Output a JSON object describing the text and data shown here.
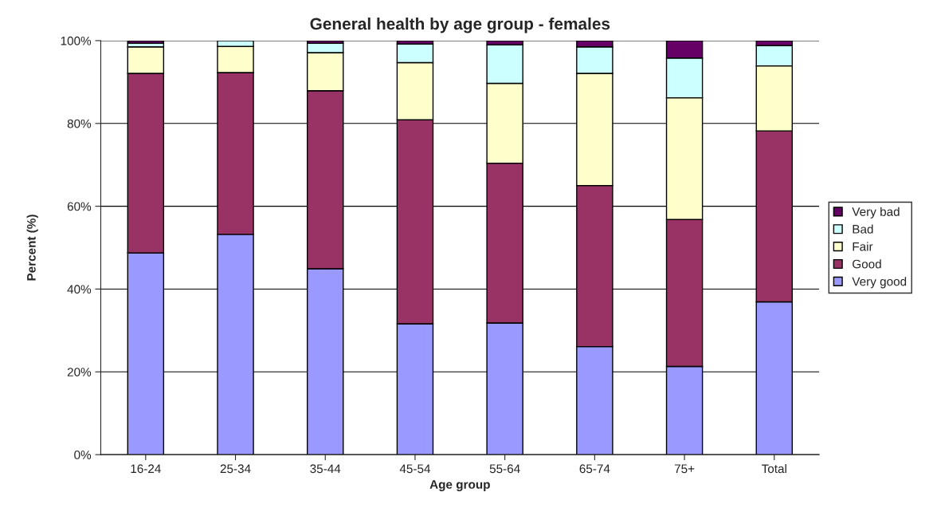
{
  "chart_data": {
    "type": "bar",
    "title": "General health by age group - females",
    "xlabel": "Age group",
    "ylabel": "Percent (%)",
    "categories": [
      "16-24",
      "25-34",
      "35-44",
      "45-54",
      "55-64",
      "65-74",
      "75+",
      "Total"
    ],
    "stacked": true,
    "grid": "y",
    "legend": "right",
    "ylim": [
      0,
      100
    ],
    "yticks": [
      {
        "value": 0,
        "label": "0%"
      },
      {
        "value": 20,
        "label": "20%"
      },
      {
        "value": 40,
        "label": "40%"
      },
      {
        "value": 60,
        "label": "60%"
      },
      {
        "value": 80,
        "label": "80%"
      },
      {
        "value": 100,
        "label": "100%"
      }
    ],
    "series": [
      {
        "name": "Very good",
        "color": "#9999ff",
        "values": [
          48.7,
          53.2,
          44.9,
          31.6,
          31.8,
          26.1,
          21.3,
          36.9
        ]
      },
      {
        "name": "Good",
        "color": "#993366",
        "values": [
          43.4,
          39.1,
          43.0,
          49.3,
          38.6,
          38.9,
          35.5,
          41.3
        ]
      },
      {
        "name": "Fair",
        "color": "#ffffcc",
        "values": [
          6.4,
          6.3,
          9.2,
          13.8,
          19.3,
          27.1,
          29.4,
          15.7
        ]
      },
      {
        "name": "Bad",
        "color": "#ccffff",
        "values": [
          0.9,
          1.4,
          2.3,
          4.5,
          9.3,
          6.4,
          9.6,
          4.9
        ]
      },
      {
        "name": "Very bad",
        "color": "#660066",
        "values": [
          0.6,
          null,
          0.6,
          0.8,
          1.0,
          1.5,
          4.2,
          1.2
        ]
      }
    ]
  }
}
